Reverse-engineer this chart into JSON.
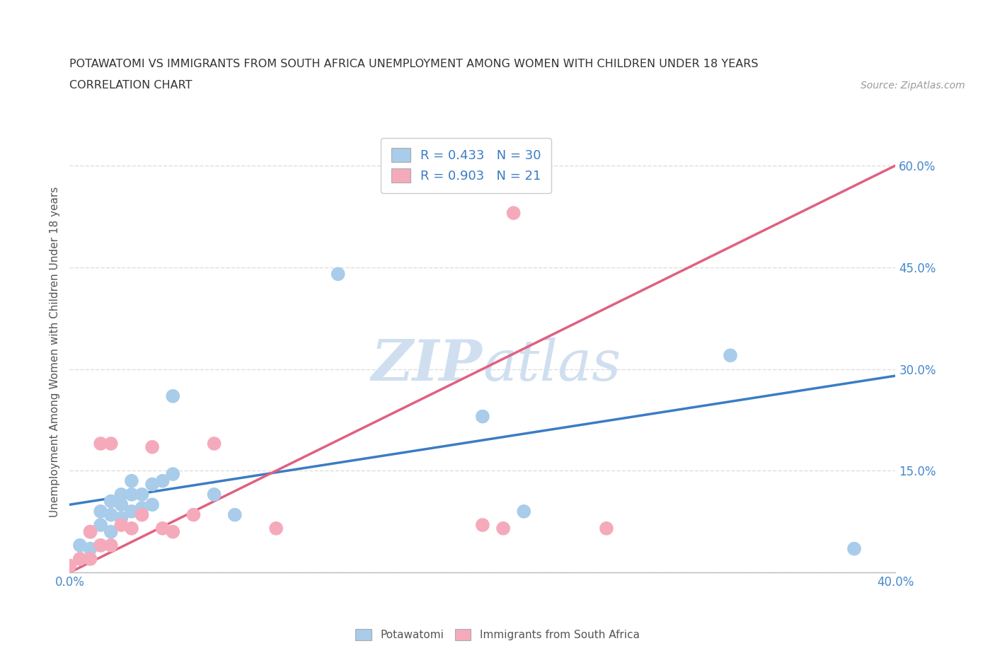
{
  "title_line1": "POTAWATOMI VS IMMIGRANTS FROM SOUTH AFRICA UNEMPLOYMENT AMONG WOMEN WITH CHILDREN UNDER 18 YEARS",
  "title_line2": "CORRELATION CHART",
  "source_text": "Source: ZipAtlas.com",
  "ylabel": "Unemployment Among Women with Children Under 18 years",
  "xlim": [
    0.0,
    0.4
  ],
  "ylim": [
    0.0,
    0.65
  ],
  "x_ticks": [
    0.0,
    0.05,
    0.1,
    0.15,
    0.2,
    0.25,
    0.3,
    0.35,
    0.4
  ],
  "x_tick_labels": [
    "0.0%",
    "",
    "",
    "",
    "",
    "",
    "",
    "",
    "40.0%"
  ],
  "y_ticks": [
    0.0,
    0.15,
    0.3,
    0.45,
    0.6
  ],
  "y_tick_labels": [
    "",
    "15.0%",
    "30.0%",
    "45.0%",
    "60.0%"
  ],
  "potawatomi_color": "#A8CCEA",
  "south_africa_color": "#F5AABB",
  "trendline_potawatomi_color": "#3B7CC4",
  "trendline_south_africa_color": "#E06080",
  "watermark_color": "#D0DFF0",
  "background_color": "#FFFFFF",
  "grid_color": "#DDDDDD",
  "legend_R_color": "#3B7CC4",
  "potawatomi_R": 0.433,
  "potawatomi_N": 30,
  "south_africa_R": 0.903,
  "south_africa_N": 21,
  "potawatomi_x": [
    0.005,
    0.005,
    0.01,
    0.01,
    0.015,
    0.015,
    0.015,
    0.02,
    0.02,
    0.02,
    0.025,
    0.025,
    0.025,
    0.03,
    0.03,
    0.03,
    0.035,
    0.035,
    0.04,
    0.04,
    0.045,
    0.05,
    0.05,
    0.07,
    0.08,
    0.13,
    0.2,
    0.22,
    0.32,
    0.38
  ],
  "potawatomi_y": [
    0.02,
    0.04,
    0.035,
    0.06,
    0.04,
    0.07,
    0.09,
    0.06,
    0.085,
    0.105,
    0.08,
    0.1,
    0.115,
    0.09,
    0.115,
    0.135,
    0.095,
    0.115,
    0.1,
    0.13,
    0.135,
    0.145,
    0.26,
    0.115,
    0.085,
    0.44,
    0.23,
    0.09,
    0.32,
    0.035
  ],
  "south_africa_x": [
    0.0,
    0.005,
    0.01,
    0.01,
    0.015,
    0.015,
    0.02,
    0.02,
    0.025,
    0.03,
    0.035,
    0.04,
    0.045,
    0.05,
    0.06,
    0.07,
    0.1,
    0.2,
    0.21,
    0.215,
    0.26
  ],
  "south_africa_y": [
    0.01,
    0.02,
    0.02,
    0.06,
    0.04,
    0.19,
    0.04,
    0.19,
    0.07,
    0.065,
    0.085,
    0.185,
    0.065,
    0.06,
    0.085,
    0.19,
    0.065,
    0.07,
    0.065,
    0.53,
    0.065
  ],
  "trendline_pot_x0": 0.0,
  "trendline_pot_x1": 0.4,
  "trendline_pot_y0": 0.1,
  "trendline_pot_y1": 0.29,
  "trendline_sa_x0": 0.0,
  "trendline_sa_x1": 0.4,
  "trendline_sa_y0": 0.0,
  "trendline_sa_y1": 0.6
}
